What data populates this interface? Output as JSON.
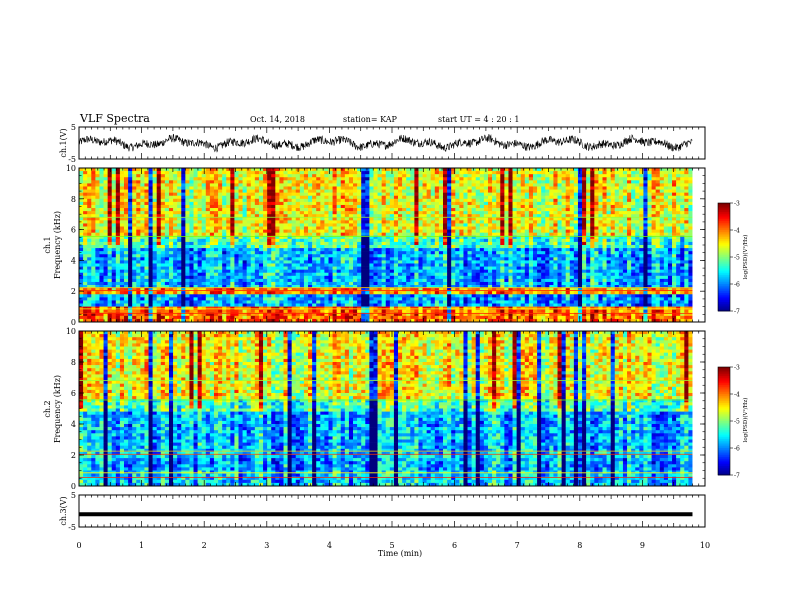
{
  "header": {
    "title": "VLF Spectra",
    "date": "Oct. 14, 2018",
    "station": "station= KAP",
    "start": "start  UT =   4 : 20 : 1"
  },
  "chart_data": [
    {
      "type": "line",
      "name": "ch1-waveform",
      "ylabel": "ch.1(V)",
      "ylim": [
        -5,
        5
      ],
      "yticks": [
        "5",
        "-5"
      ],
      "xlim": [
        0,
        10
      ],
      "x_end": 9.8,
      "description_of_values": "noisy waveform mostly between -3 and +3 V"
    },
    {
      "type": "heatmap",
      "name": "ch1-spectrogram",
      "ylabel": "ch.1\nFrequency (kHz)",
      "ylim": [
        0,
        10
      ],
      "yticks": [
        "0",
        "2",
        "4",
        "6",
        "8",
        "10"
      ],
      "xlim": [
        0,
        10
      ],
      "x_end": 9.8,
      "colorbar": {
        "label": "log(PSD)(V²/Hz)",
        "range": [
          -7,
          -3
        ],
        "ticks": [
          "-3",
          "-4",
          "-5",
          "-6",
          "-7"
        ]
      }
    },
    {
      "type": "heatmap",
      "name": "ch2-spectrogram",
      "ylabel": "ch.2\nFrequency (kHz)",
      "ylim": [
        0,
        10
      ],
      "yticks": [
        "0",
        "2",
        "4",
        "6",
        "8",
        "10"
      ],
      "xlim": [
        0,
        10
      ],
      "x_end": 9.8,
      "colorbar": {
        "label": "log(PSD)(V²/Hz)",
        "range": [
          -7,
          -3
        ],
        "ticks": [
          "-3",
          "-4",
          "-5",
          "-6",
          "-7"
        ]
      }
    },
    {
      "type": "line",
      "name": "ch3-waveform",
      "ylabel": "ch.3(V)",
      "ylim": [
        -5,
        5
      ],
      "yticks": [
        "5",
        "-5"
      ],
      "xlim": [
        0,
        10
      ],
      "x_end": 9.8,
      "constant_value": -1
    }
  ],
  "xaxis": {
    "label": "Time  (min)",
    "ticks": [
      "0",
      "1",
      "2",
      "3",
      "4",
      "5",
      "6",
      "7",
      "8",
      "9",
      "10"
    ]
  },
  "labels": {
    "ch1v": "ch.1(V)",
    "ch1f_a": "ch.1",
    "ch1f_b": "Frequency  (kHz)",
    "ch2f_a": "ch.2",
    "ch2f_b": "Frequency  (kHz)",
    "ch3v": "ch.3(V)",
    "cb_label": "log(PSD)(V²/Hz)"
  },
  "colors": {
    "jet": [
      "#00007f",
      "#0000ff",
      "#007fff",
      "#00ffff",
      "#7fff7f",
      "#ffff00",
      "#ff7f00",
      "#ff0000",
      "#7f0000"
    ]
  }
}
